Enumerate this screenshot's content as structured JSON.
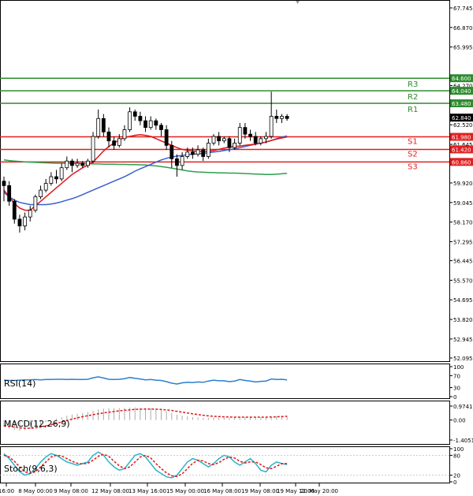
{
  "chart_data": {
    "type": "candlestick",
    "price_axis": {
      "min": 52.095,
      "max": 67.745,
      "ticks": [
        "67.745",
        "66.870",
        "65.995",
        "64.270",
        "63.480",
        "62.520",
        "61.645",
        "59.920",
        "59.045",
        "58.170",
        "57.295",
        "56.445",
        "55.570",
        "54.695",
        "53.820",
        "52.945",
        "52.095"
      ],
      "current_price": "62.840"
    },
    "levels": [
      {
        "name": "R3",
        "value": 64.6,
        "label": "64.600",
        "color": "#2e8b2e"
      },
      {
        "name": "R2",
        "value": 64.04,
        "label": "64.040",
        "color": "#2e8b2e"
      },
      {
        "name": "R1",
        "value": 63.48,
        "label": "63.480",
        "color": "#2e8b2e"
      },
      {
        "name": "S1",
        "value": 61.98,
        "label": "61.980",
        "color": "#e02020"
      },
      {
        "name": "S2",
        "value": 61.42,
        "label": "61.420",
        "color": "#e02020"
      },
      {
        "name": "S3",
        "value": 60.86,
        "label": "60.860",
        "color": "#e02020"
      }
    ],
    "x_labels": [
      "16:00",
      "8 May 00:00",
      "9 May 08:00",
      "12 May 08:00",
      "13 May 16:00",
      "15 May 00:00",
      "16 May 08:00",
      "19 May 08:00",
      "19 May 12:00",
      "20 May 20:00"
    ],
    "candles": [
      [
        60.0,
        59.8,
        60.2,
        59.1
      ],
      [
        59.8,
        59.1,
        60.0,
        58.9
      ],
      [
        59.1,
        58.3,
        59.2,
        58.1
      ],
      [
        58.3,
        58.0,
        58.5,
        57.7
      ],
      [
        58.0,
        58.4,
        58.6,
        57.8
      ],
      [
        58.4,
        58.7,
        58.9,
        58.2
      ],
      [
        58.7,
        59.3,
        59.4,
        58.6
      ],
      [
        59.3,
        59.6,
        59.8,
        59.2
      ],
      [
        59.6,
        59.9,
        60.1,
        59.5
      ],
      [
        59.9,
        60.2,
        60.4,
        59.8
      ],
      [
        60.2,
        60.1,
        60.5,
        59.9
      ],
      [
        60.1,
        60.6,
        60.8,
        60.0
      ],
      [
        60.6,
        60.9,
        61.1,
        60.5
      ],
      [
        60.9,
        60.7,
        61.0,
        60.4
      ],
      [
        60.7,
        60.8,
        61.0,
        60.6
      ],
      [
        60.8,
        60.7,
        60.9,
        60.6
      ],
      [
        60.7,
        60.9,
        61.0,
        60.6
      ],
      [
        60.9,
        62.0,
        62.2,
        60.8
      ],
      [
        62.0,
        62.8,
        63.2,
        61.9
      ],
      [
        62.8,
        62.2,
        63.0,
        62.0
      ],
      [
        62.2,
        61.8,
        62.4,
        61.5
      ],
      [
        61.8,
        61.6,
        62.0,
        61.4
      ],
      [
        61.6,
        61.9,
        62.1,
        61.5
      ],
      [
        61.9,
        62.3,
        62.5,
        61.8
      ],
      [
        62.3,
        63.1,
        63.3,
        62.2
      ],
      [
        63.1,
        62.9,
        63.2,
        62.7
      ],
      [
        62.9,
        62.7,
        63.1,
        62.5
      ],
      [
        62.7,
        62.4,
        62.9,
        62.2
      ],
      [
        62.4,
        62.7,
        62.9,
        62.3
      ],
      [
        62.7,
        62.5,
        62.8,
        62.3
      ],
      [
        62.5,
        62.3,
        62.6,
        62.0
      ],
      [
        62.3,
        61.6,
        62.5,
        61.4
      ],
      [
        61.6,
        61.0,
        61.8,
        60.6
      ],
      [
        61.0,
        60.7,
        61.2,
        60.2
      ],
      [
        60.7,
        61.1,
        61.3,
        60.5
      ],
      [
        61.1,
        61.3,
        61.5,
        61.0
      ],
      [
        61.3,
        61.2,
        61.5,
        61.0
      ],
      [
        61.2,
        61.4,
        61.6,
        61.1
      ],
      [
        61.4,
        61.1,
        61.5,
        60.9
      ],
      [
        61.1,
        61.7,
        61.9,
        61.0
      ],
      [
        61.7,
        62.0,
        62.1,
        61.6
      ],
      [
        62.0,
        61.8,
        62.2,
        61.6
      ],
      [
        61.8,
        61.9,
        62.0,
        61.7
      ],
      [
        61.9,
        61.5,
        62.0,
        61.3
      ],
      [
        61.5,
        61.7,
        61.9,
        61.4
      ],
      [
        61.7,
        62.4,
        62.6,
        61.6
      ],
      [
        62.4,
        62.1,
        62.6,
        61.9
      ],
      [
        62.1,
        62.0,
        62.3,
        61.8
      ],
      [
        62.0,
        61.7,
        62.2,
        61.6
      ],
      [
        61.7,
        61.9,
        62.0,
        61.6
      ],
      [
        61.9,
        62.0,
        62.2,
        61.7
      ],
      [
        62.0,
        62.9,
        64.0,
        61.9
      ],
      [
        62.9,
        62.8,
        63.2,
        62.6
      ],
      [
        62.8,
        62.9,
        63.0,
        62.6
      ],
      [
        62.9,
        62.8,
        63.0,
        62.7
      ]
    ],
    "ma_red": [
      59.6,
      59.3,
      59.0,
      58.8,
      58.7,
      58.7,
      58.9,
      59.1,
      59.3,
      59.5,
      59.7,
      59.9,
      60.1,
      60.3,
      60.45,
      60.6,
      60.72,
      60.85,
      61.1,
      61.35,
      61.55,
      61.7,
      61.85,
      61.95,
      62.0,
      62.05,
      62.08,
      62.05,
      62.0,
      61.9,
      61.8,
      61.7,
      61.6,
      61.5,
      61.42,
      61.38,
      61.35,
      61.33,
      61.32,
      61.33,
      61.37,
      61.42,
      61.48,
      61.52,
      61.55,
      61.57,
      61.6,
      61.63,
      61.66,
      61.7,
      61.75,
      61.82,
      61.88,
      61.93,
      61.98
    ],
    "ma_blue": [
      59.5,
      59.3,
      59.15,
      59.05,
      59.0,
      58.95,
      58.95,
      58.95,
      58.95,
      58.98,
      59.02,
      59.08,
      59.15,
      59.22,
      59.3,
      59.4,
      59.5,
      59.6,
      59.7,
      59.8,
      59.9,
      60.0,
      60.1,
      60.2,
      60.32,
      60.45,
      60.55,
      60.65,
      60.75,
      60.85,
      60.95,
      61.02,
      61.08,
      61.12,
      61.15,
      61.18,
      61.2,
      61.22,
      61.24,
      61.27,
      61.3,
      61.33,
      61.37,
      61.41,
      61.45,
      61.5,
      61.55,
      61.6,
      61.65,
      61.7,
      61.75,
      61.82,
      61.9,
      61.97,
      62.02
    ],
    "ma_green": [
      60.95,
      60.92,
      60.9,
      60.88,
      60.86,
      60.85,
      60.84,
      60.83,
      60.82,
      60.81,
      60.8,
      60.8,
      60.8,
      60.79,
      60.79,
      60.78,
      60.78,
      60.77,
      60.77,
      60.76,
      60.76,
      60.76,
      60.75,
      60.75,
      60.74,
      60.74,
      60.73,
      60.72,
      60.7,
      60.68,
      60.65,
      60.62,
      60.58,
      60.54,
      60.5,
      60.46,
      60.43,
      60.41,
      60.4,
      60.39,
      60.38,
      60.37,
      60.37,
      60.36,
      60.36,
      60.35,
      60.34,
      60.33,
      60.32,
      60.31,
      60.3,
      60.3,
      60.31,
      60.33,
      60.35
    ],
    "indicators": {
      "rsi": {
        "label": "RSI(14)",
        "ticks": [
          "100",
          "70",
          "30",
          "0"
        ],
        "values": [
          55,
          54,
          54,
          55,
          56,
          56,
          57,
          56,
          57,
          57,
          58,
          58,
          57,
          58,
          57,
          57,
          58,
          63,
          66,
          62,
          58,
          57,
          58,
          60,
          64,
          61,
          59,
          56,
          57,
          55,
          54,
          50,
          45,
          42,
          46,
          48,
          47,
          49,
          48,
          52,
          55,
          53,
          53,
          50,
          52,
          57,
          54,
          52,
          49,
          51,
          52,
          59,
          57,
          58,
          56
        ]
      },
      "macd": {
        "label": "MACD(12,26,9)",
        "ticks": [
          "0.9741",
          "0.00",
          "-1.4051"
        ],
        "hist": [
          -0.5,
          -0.6,
          -0.7,
          -0.75,
          -0.7,
          -0.6,
          -0.45,
          -0.3,
          -0.15,
          0.0,
          0.1,
          0.2,
          0.3,
          0.38,
          0.44,
          0.5,
          0.55,
          0.65,
          0.75,
          0.8,
          0.82,
          0.83,
          0.84,
          0.85,
          0.87,
          0.88,
          0.87,
          0.85,
          0.82,
          0.78,
          0.72,
          0.62,
          0.5,
          0.38,
          0.3,
          0.25,
          0.2,
          0.17,
          0.15,
          0.15,
          0.16,
          0.17,
          0.17,
          0.16,
          0.16,
          0.18,
          0.19,
          0.19,
          0.18,
          0.18,
          0.19,
          0.24,
          0.27,
          0.29,
          0.3
        ],
        "signal": [
          -0.4,
          -0.45,
          -0.5,
          -0.55,
          -0.58,
          -0.58,
          -0.55,
          -0.5,
          -0.42,
          -0.33,
          -0.24,
          -0.14,
          -0.04,
          0.06,
          0.15,
          0.23,
          0.3,
          0.37,
          0.44,
          0.5,
          0.55,
          0.6,
          0.64,
          0.68,
          0.71,
          0.74,
          0.76,
          0.77,
          0.77,
          0.76,
          0.74,
          0.71,
          0.67,
          0.61,
          0.55,
          0.49,
          0.43,
          0.38,
          0.33,
          0.29,
          0.26,
          0.24,
          0.22,
          0.21,
          0.2,
          0.2,
          0.2,
          0.2,
          0.2,
          0.2,
          0.2,
          0.21,
          0.22,
          0.24,
          0.26
        ]
      },
      "stoch": {
        "label": "Stoch(9,6,3)",
        "ticks": [
          "100",
          "80",
          "20",
          "0"
        ],
        "k": [
          85,
          70,
          50,
          30,
          20,
          25,
          40,
          60,
          75,
          85,
          80,
          70,
          60,
          55,
          50,
          55,
          60,
          80,
          90,
          80,
          60,
          45,
          35,
          40,
          60,
          80,
          85,
          75,
          55,
          35,
          25,
          15,
          12,
          20,
          40,
          60,
          70,
          65,
          55,
          45,
          55,
          70,
          80,
          75,
          60,
          50,
          60,
          70,
          55,
          35,
          30,
          50,
          60,
          55,
          52
        ],
        "d": [
          80,
          75,
          62,
          45,
          30,
          25,
          30,
          45,
          60,
          75,
          80,
          78,
          70,
          62,
          56,
          54,
          56,
          65,
          77,
          83,
          77,
          62,
          48,
          40,
          45,
          60,
          75,
          80,
          72,
          55,
          40,
          27,
          18,
          16,
          24,
          40,
          56,
          65,
          63,
          55,
          52,
          58,
          68,
          75,
          72,
          62,
          57,
          60,
          60,
          52,
          42,
          40,
          47,
          55,
          55
        ]
      }
    }
  }
}
